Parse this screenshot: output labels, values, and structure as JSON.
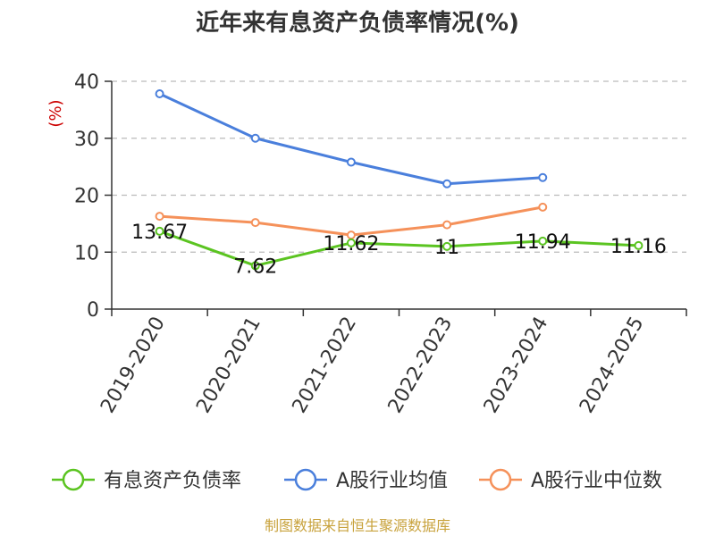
{
  "chart_data": {
    "type": "line",
    "title": "近年来有息资产负债率情况(%)",
    "ylabel": "(%)",
    "categories": [
      "2019-2020",
      "2020-2021",
      "2021-2022",
      "2022-2023",
      "2023-2024",
      "2024-2025"
    ],
    "ylim": [
      0,
      40
    ],
    "yticks": [
      0,
      10,
      20,
      30,
      40
    ],
    "grid": true,
    "legend_position": "bottom",
    "series": [
      {
        "name": "有息资产负债率",
        "color": "#5bc421",
        "values": [
          13.67,
          7.62,
          11.62,
          11,
          11.94,
          11.16
        ],
        "labels": [
          "13.67",
          "7.62",
          "11.62",
          "11",
          "11.94",
          "11.16"
        ]
      },
      {
        "name": "A股行业均值",
        "color": "#4a7fdc",
        "values": [
          37.8,
          30.0,
          25.8,
          22.0,
          23.1,
          null
        ]
      },
      {
        "name": "A股行业中位数",
        "color": "#f5915a",
        "values": [
          16.3,
          15.2,
          13.0,
          14.8,
          17.9,
          null
        ]
      }
    ],
    "source": "制图数据来自恒生聚源数据库"
  }
}
